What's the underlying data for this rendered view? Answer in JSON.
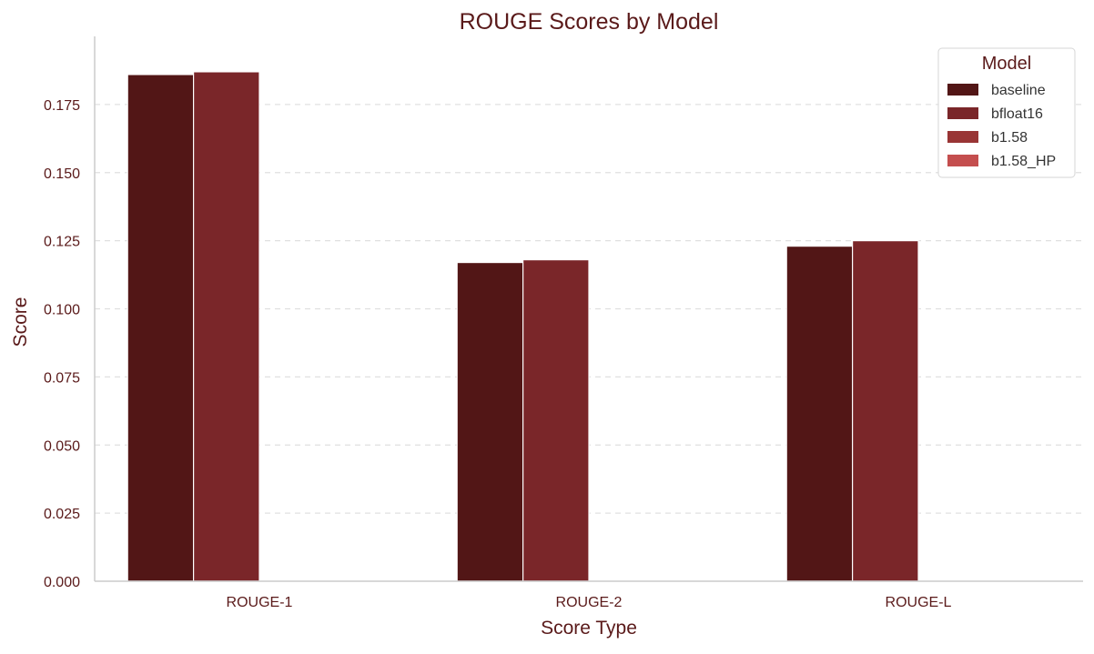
{
  "chart_data": {
    "type": "bar",
    "title": "ROUGE Scores by Model",
    "xlabel": "Score Type",
    "ylabel": "Score",
    "categories": [
      "ROUGE-1",
      "ROUGE-2",
      "ROUGE-L"
    ],
    "series": [
      {
        "name": "baseline",
        "values": [
          0.186,
          0.117,
          0.123
        ],
        "color": "#521616"
      },
      {
        "name": "bfloat16",
        "values": [
          0.187,
          0.118,
          0.125
        ],
        "color": "#7a2629"
      },
      {
        "name": "b1.58",
        "values": [
          0,
          0,
          0
        ],
        "color": "#993535"
      },
      {
        "name": "b1.58_HP",
        "values": [
          0,
          0,
          0
        ],
        "color": "#c44e4e"
      }
    ],
    "ylim": [
      0,
      0.2
    ],
    "yticks": [
      "0.000",
      "0.025",
      "0.050",
      "0.075",
      "0.100",
      "0.125",
      "0.150",
      "0.175"
    ],
    "grid": true,
    "legend": {
      "title": "Model",
      "position": "top-right"
    },
    "colors": {
      "text": "#5a1a1a",
      "axis": "#cccccc",
      "grid": "#e0e0e0"
    }
  }
}
